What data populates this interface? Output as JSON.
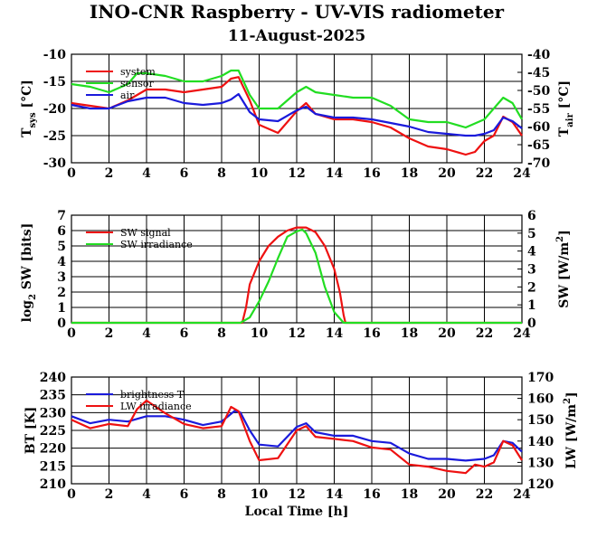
{
  "title": "INO-CNR Raspberry - UV-VIS radiometer",
  "subtitle": "11-August-2025",
  "colors": {
    "red": "#ee1111",
    "green": "#22dd22",
    "blue": "#1a1adb",
    "grid": "#000000"
  },
  "chart_data": [
    {
      "type": "line",
      "xlabel": "",
      "ylabel": "T_sys [°C]",
      "y2label": "T_air [°C]",
      "xlim": [
        0,
        24
      ],
      "ylim": [
        -30,
        -10
      ],
      "y2lim": [
        -70,
        -40
      ],
      "x_ticks": [
        "0",
        "2",
        "4",
        "6",
        "8",
        "10",
        "12",
        "14",
        "16",
        "18",
        "20",
        "22",
        "24"
      ],
      "y_ticks": [
        "-30",
        "-25",
        "-20",
        "-15",
        "-10"
      ],
      "y2_ticks": [
        "-70",
        "-65",
        "-60",
        "-55",
        "-50",
        "-45",
        "-40"
      ],
      "grid": true,
      "legend_position": "top-left",
      "series": [
        {
          "name": "system",
          "color": "#ee1111",
          "axis": "left",
          "x": [
            0,
            1,
            2,
            3,
            4,
            5,
            6,
            7,
            8,
            8.5,
            8.9,
            9.5,
            10,
            11,
            12,
            12.5,
            13,
            14,
            15,
            16,
            17,
            18,
            19,
            20,
            21,
            21.5,
            22,
            22.5,
            23,
            23.5,
            24
          ],
          "y": [
            -19,
            -19.5,
            -20,
            -18.5,
            -16.5,
            -16.5,
            -17,
            -16.5,
            -16,
            -14.5,
            -14.2,
            -18.5,
            -23,
            -24.5,
            -20.5,
            -19,
            -21,
            -22,
            -22,
            -22.5,
            -23.5,
            -25.5,
            -27,
            -27.5,
            -28.5,
            -28,
            -26,
            -25,
            -21.5,
            -22.5,
            -25
          ]
        },
        {
          "name": "sensor",
          "color": "#22dd22",
          "axis": "left",
          "x": [
            0,
            1,
            2,
            3,
            3.5,
            4,
            5,
            6,
            7,
            8,
            8.5,
            8.9,
            9.5,
            10,
            11,
            12,
            12.5,
            13,
            14,
            15,
            16,
            17,
            18,
            19,
            20,
            21,
            22,
            22.5,
            23,
            23.5,
            24
          ],
          "y": [
            -15.5,
            -16,
            -17,
            -15.5,
            -13.5,
            -13.5,
            -14,
            -15,
            -15,
            -14,
            -13,
            -13,
            -17.5,
            -20,
            -20,
            -17,
            -16,
            -17,
            -17.5,
            -18,
            -18,
            -19.5,
            -22,
            -22.5,
            -22.5,
            -23.5,
            -22,
            -20,
            -18,
            -19,
            -22
          ]
        },
        {
          "name": "air",
          "color": "#1a1adb",
          "axis": "right",
          "x": [
            0,
            1,
            2,
            3,
            4,
            5,
            6,
            7,
            8,
            8.5,
            8.9,
            9.5,
            10,
            11,
            12,
            12.5,
            13,
            14,
            15,
            16,
            17,
            18,
            19,
            20,
            21,
            21.5,
            22,
            22.5,
            23,
            23.5,
            24
          ],
          "y": [
            -54,
            -55,
            -55,
            -53,
            -52,
            -52,
            -53.5,
            -54,
            -53.5,
            -52.5,
            -51,
            -56,
            -58,
            -58.5,
            -55.5,
            -54.5,
            -56.5,
            -57.5,
            -57.5,
            -58,
            -59,
            -60,
            -61.5,
            -62,
            -62.5,
            -62.5,
            -62,
            -61,
            -57.5,
            -58.5,
            -60.5
          ]
        }
      ]
    },
    {
      "type": "line",
      "xlabel": "",
      "ylabel": "log2 SW [bits]",
      "y2label": "SW [W/m2]",
      "xlim": [
        0,
        24
      ],
      "ylim": [
        0,
        7
      ],
      "y2lim": [
        0,
        6
      ],
      "x_ticks": [
        "0",
        "2",
        "4",
        "6",
        "8",
        "10",
        "12",
        "14",
        "16",
        "18",
        "20",
        "22",
        "24"
      ],
      "y_ticks": [
        "0",
        "1",
        "2",
        "3",
        "4",
        "5",
        "6",
        "7"
      ],
      "y2_ticks": [
        "0",
        "1",
        "2",
        "3",
        "4",
        "5",
        "6"
      ],
      "grid": true,
      "legend_position": "top-left",
      "series": [
        {
          "name": "SW signal",
          "color": "#ee1111",
          "axis": "left",
          "x": [
            0,
            9.1,
            9.3,
            9.5,
            10,
            10.5,
            11,
            11.5,
            12,
            12.5,
            13,
            13.5,
            14,
            14.3,
            14.5,
            14.6,
            24
          ],
          "y": [
            0,
            0,
            1,
            2.5,
            4,
            5,
            5.6,
            6,
            6.2,
            6.2,
            5.9,
            5,
            3.5,
            2,
            0.5,
            0,
            0
          ]
        },
        {
          "name": "SW irradiance",
          "color": "#22dd22",
          "axis": "right",
          "x": [
            0,
            9,
            9.5,
            10,
            10.5,
            11,
            11.5,
            12,
            12.3,
            12.5,
            13,
            13.5,
            14,
            14.5,
            24
          ],
          "y": [
            0,
            0,
            0.3,
            1.2,
            2.3,
            3.6,
            4.8,
            5.1,
            5.2,
            5.0,
            3.9,
            2.0,
            0.6,
            0,
            0
          ]
        }
      ]
    },
    {
      "type": "line",
      "xlabel": "Local Time [h]",
      "ylabel": "BT [K]",
      "y2label": "LW [W/m2]",
      "xlim": [
        0,
        24
      ],
      "ylim": [
        210,
        240
      ],
      "y2lim": [
        120,
        170
      ],
      "x_ticks": [
        "0",
        "2",
        "4",
        "6",
        "8",
        "10",
        "12",
        "14",
        "16",
        "18",
        "20",
        "22",
        "24"
      ],
      "y_ticks": [
        "210",
        "215",
        "220",
        "225",
        "230",
        "235",
        "240"
      ],
      "y2_ticks": [
        "120",
        "130",
        "140",
        "150",
        "160",
        "170"
      ],
      "grid": true,
      "legend_position": "top-left",
      "series": [
        {
          "name": "brightness T",
          "color": "#1a1adb",
          "axis": "left",
          "x": [
            0,
            1,
            2,
            3,
            4,
            5,
            6,
            7,
            8,
            8.7,
            9,
            9.5,
            10,
            11,
            12,
            12.5,
            13,
            14,
            15,
            16,
            17,
            18,
            19,
            20,
            21,
            22,
            22.5,
            23,
            23.5,
            24
          ],
          "y": [
            229,
            227,
            228,
            227.5,
            229,
            229,
            228,
            226.5,
            227.5,
            230.5,
            230,
            225,
            221,
            220.5,
            226,
            227,
            224.5,
            223.5,
            223.5,
            222,
            221.5,
            218.5,
            217,
            217,
            216.5,
            217,
            218,
            222,
            221.5,
            219
          ]
        },
        {
          "name": "LW irradiance",
          "color": "#ee1111",
          "axis": "right",
          "x": [
            0,
            1,
            2,
            3,
            3.5,
            4,
            5,
            6,
            7,
            8,
            8.5,
            8.9,
            9.5,
            10,
            11,
            12,
            12.5,
            13,
            14,
            15,
            16,
            17,
            18,
            19,
            20,
            21,
            21.5,
            22,
            22.5,
            23,
            23.5,
            24
          ],
          "y": [
            150,
            146,
            148,
            147,
            155,
            159,
            153,
            148,
            146,
            147,
            156,
            154,
            140,
            131,
            132,
            145,
            147,
            142,
            141,
            140,
            137,
            136,
            129,
            128,
            126,
            125,
            129,
            128,
            130,
            140,
            138,
            131
          ]
        }
      ]
    }
  ]
}
